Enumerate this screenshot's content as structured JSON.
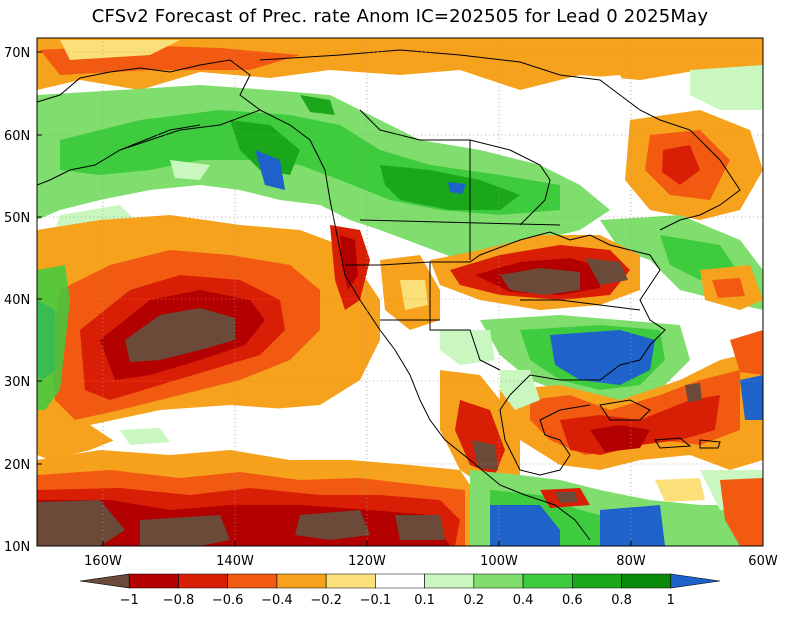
{
  "title": "CFSv2 Forecast of Prec. rate Anom IC=202505 for Lead 0 2025May",
  "lat_labels": [
    "70N",
    "60N",
    "50N",
    "40N",
    "30N",
    "20N",
    "10N"
  ],
  "lon_labels": [
    "160W",
    "140W",
    "120W",
    "100W",
    "80W",
    "60W"
  ],
  "colorbar": {
    "tick_labels": [
      "−1",
      "−0.8",
      "−0.6",
      "−0.4",
      "−0.2",
      "−0.1",
      "0.1",
      "0.2",
      "0.4",
      "0.6",
      "0.8",
      "1"
    ],
    "colors": [
      "#6b4a3a",
      "#b30000",
      "#d81f05",
      "#f25a12",
      "#f7a21c",
      "#fbe07a",
      "#ffffff",
      "#c9f7bf",
      "#7fde6e",
      "#3ecc3e",
      "#1aa81a",
      "#0a8a0a",
      "#1f62c9"
    ]
  },
  "map_colors": {
    "brown": "#6b4a3a",
    "darkred": "#b30000",
    "red": "#d81f05",
    "orange_red": "#f25a12",
    "orange": "#f7a21c",
    "yellow": "#fbe07a",
    "white": "#ffffff",
    "pale_green": "#c9f7bf",
    "light_green": "#7fde6e",
    "green": "#3ecc3e",
    "mid_green": "#1aa81a",
    "dark_green": "#0a8a0a",
    "blue": "#1f62c9"
  }
}
